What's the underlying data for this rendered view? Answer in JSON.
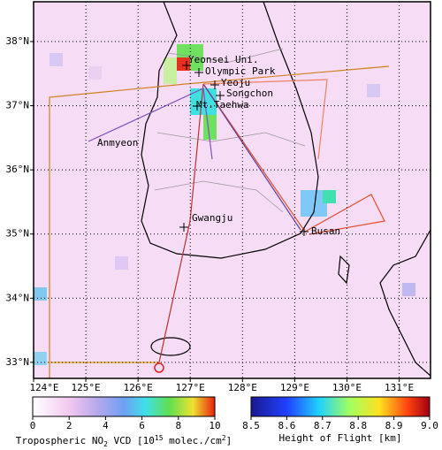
{
  "map": {
    "xlim": [
      124,
      131.6
    ],
    "ylim": [
      32.75,
      38.62
    ],
    "grid": true,
    "lon_ticks": [
      {
        "value": 124,
        "label": "124°E"
      },
      {
        "value": 125,
        "label": "125°E"
      },
      {
        "value": 126,
        "label": "126°E"
      },
      {
        "value": 127,
        "label": "127°E"
      },
      {
        "value": 128,
        "label": "128°E"
      },
      {
        "value": 129,
        "label": "129°E"
      },
      {
        "value": 130,
        "label": "130°E"
      },
      {
        "value": 131,
        "label": "131°E"
      }
    ],
    "lat_ticks": [
      {
        "value": 33,
        "label": "33°N"
      },
      {
        "value": 34,
        "label": "34°N"
      },
      {
        "value": 35,
        "label": "35°N"
      },
      {
        "value": 36,
        "label": "36°N"
      },
      {
        "value": 37,
        "label": "37°N"
      },
      {
        "value": 38,
        "label": "38°N"
      }
    ]
  },
  "sites": [
    "Yeonsei Uni.",
    "Olympic Park",
    "Yeoju",
    "Songchon",
    "Mt.Taehwa",
    "Anmyeon",
    "Gwangju",
    "Busan"
  ],
  "colorbars": [
    {
      "label_parts": [
        "Tropospheric NO",
        "2",
        " VCD [10",
        "15",
        " molec./cm",
        "2",
        "]"
      ],
      "lim": [
        0,
        10
      ],
      "ticks": [
        0,
        2,
        4,
        6,
        8,
        10
      ]
    },
    {
      "label": "Height of Flight [km]",
      "lim": [
        8.5,
        9.0
      ],
      "ticks": [
        8.5,
        8.6,
        8.7,
        8.8,
        8.9,
        {
          "value": 9,
          "label": "9.0"
        }
      ]
    }
  ]
}
